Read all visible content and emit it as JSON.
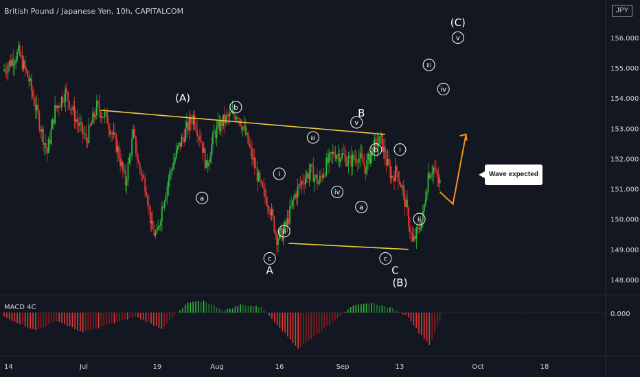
{
  "header": {
    "title": "British Pound / Japanese Yen, 10h, CAPITALCOM"
  },
  "currency": "JPY",
  "indicator": {
    "label": "MACD 4C",
    "zero_label": "0.000"
  },
  "callout": {
    "text": "Wave expected"
  },
  "colors": {
    "background": "#131722",
    "up": "#26a69a",
    "up_candle": "#2ebd3a",
    "down_candle": "#e53935",
    "trendline": "#f0c93c",
    "arrow": "#f7931a",
    "text": "#d1d4dc",
    "grid": "#1e222d"
  },
  "chart_data": {
    "type": "candlestick",
    "y_axis": {
      "ticks": [
        148.0,
        149.0,
        150.0,
        151.0,
        152.0,
        153.0,
        154.0,
        155.0,
        156.0
      ],
      "tick_labels": [
        "148.000",
        "149.000",
        "150.000",
        "151.000",
        "152.000",
        "153.000",
        "154.000",
        "155.000",
        "156.000"
      ],
      "range": [
        147.5,
        156.7
      ]
    },
    "x_axis": {
      "tick_labels": [
        "14",
        "Jul",
        "19",
        "Aug",
        "16",
        "Sep",
        "13",
        "Oct",
        "18"
      ]
    },
    "price_path": [
      {
        "t": 0,
        "p": 154.9
      },
      {
        "t": 6,
        "p": 155.5
      },
      {
        "t": 10,
        "p": 154.6
      },
      {
        "t": 14,
        "p": 153.2
      },
      {
        "t": 17,
        "p": 152.2
      },
      {
        "t": 20,
        "p": 153.6
      },
      {
        "t": 24,
        "p": 154.2
      },
      {
        "t": 28,
        "p": 153.3
      },
      {
        "t": 32,
        "p": 152.6
      },
      {
        "t": 36,
        "p": 153.7
      },
      {
        "t": 40,
        "p": 153.3
      },
      {
        "t": 44,
        "p": 152.3
      },
      {
        "t": 47,
        "p": 151.2
      },
      {
        "t": 50,
        "p": 152.8
      },
      {
        "t": 52,
        "p": 151.8
      },
      {
        "t": 55,
        "p": 151.0
      },
      {
        "t": 57,
        "p": 149.7
      },
      {
        "t": 59,
        "p": 149.4
      },
      {
        "t": 61,
        "p": 150.4
      },
      {
        "t": 64,
        "p": 151.5
      },
      {
        "t": 67,
        "p": 152.3
      },
      {
        "t": 70,
        "p": 152.9
      },
      {
        "t": 73,
        "p": 153.4
      },
      {
        "t": 76,
        "p": 152.6
      },
      {
        "t": 78,
        "p": 151.7
      },
      {
        "t": 81,
        "p": 152.8
      },
      {
        "t": 84,
        "p": 153.2
      },
      {
        "t": 87,
        "p": 153.4
      },
      {
        "t": 90,
        "p": 153.5
      },
      {
        "t": 93,
        "p": 152.8
      },
      {
        "t": 96,
        "p": 151.9
      },
      {
        "t": 99,
        "p": 151.0
      },
      {
        "t": 102,
        "p": 150.5
      },
      {
        "t": 105,
        "p": 149.4
      },
      {
        "t": 107,
        "p": 149.5
      },
      {
        "t": 109,
        "p": 149.9
      },
      {
        "t": 112,
        "p": 150.8
      },
      {
        "t": 115,
        "p": 151.3
      },
      {
        "t": 118,
        "p": 151.6
      },
      {
        "t": 121,
        "p": 151.2
      },
      {
        "t": 124,
        "p": 151.8
      },
      {
        "t": 127,
        "p": 152.2
      },
      {
        "t": 130,
        "p": 152.1
      },
      {
        "t": 133,
        "p": 151.9
      },
      {
        "t": 136,
        "p": 152.1
      },
      {
        "t": 139,
        "p": 151.7
      },
      {
        "t": 142,
        "p": 152.4
      },
      {
        "t": 145,
        "p": 152.6
      },
      {
        "t": 147,
        "p": 151.9
      },
      {
        "t": 149,
        "p": 151.4
      },
      {
        "t": 151,
        "p": 151.6
      },
      {
        "t": 153,
        "p": 151.0
      },
      {
        "t": 155,
        "p": 150.2
      },
      {
        "t": 157,
        "p": 149.2
      },
      {
        "t": 159,
        "p": 149.6
      },
      {
        "t": 161,
        "p": 150.1
      },
      {
        "t": 163,
        "p": 151.5
      },
      {
        "t": 165,
        "p": 151.7
      },
      {
        "t": 167,
        "p": 151.2
      }
    ],
    "trendlines": [
      {
        "name": "upper",
        "from": {
          "t": 37,
          "p": 153.6
        },
        "to": {
          "t": 146,
          "p": 152.8
        }
      },
      {
        "name": "lower",
        "from": {
          "t": 109,
          "p": 149.2
        },
        "to": {
          "t": 155,
          "p": 149.0
        }
      }
    ],
    "projection": [
      {
        "t": 167,
        "p": 150.9
      },
      {
        "t": 172,
        "p": 150.5
      },
      {
        "t": 177,
        "p": 152.8
      }
    ],
    "wave_labels": [
      {
        "text": "(A)",
        "t": 37,
        "p": 154.0,
        "style": "plain"
      },
      {
        "text": "b",
        "t": 48,
        "p": 153.7,
        "style": "circle"
      },
      {
        "text": "a",
        "t": 41,
        "p": 150.7,
        "style": "circle"
      },
      {
        "text": "i",
        "t": 57,
        "p": 151.5,
        "style": "circle"
      },
      {
        "text": "ii",
        "t": 58,
        "p": 149.6,
        "style": "circle"
      },
      {
        "text": "c",
        "t": 55,
        "p": 148.7,
        "style": "circle"
      },
      {
        "text": "A",
        "t": 55,
        "p": 148.3,
        "style": "plain"
      },
      {
        "text": "iii",
        "t": 64,
        "p": 152.7,
        "style": "circle"
      },
      {
        "text": "iv",
        "t": 69,
        "p": 150.9,
        "style": "circle"
      },
      {
        "text": "B",
        "t": 74,
        "p": 153.5,
        "style": "plain"
      },
      {
        "text": "v",
        "t": 73,
        "p": 153.2,
        "style": "circle"
      },
      {
        "text": "b",
        "t": 77,
        "p": 152.3,
        "style": "circle"
      },
      {
        "text": "a",
        "t": 74,
        "p": 150.4,
        "style": "circle"
      },
      {
        "text": "c",
        "t": 79,
        "p": 148.7,
        "style": "circle"
      },
      {
        "text": "C",
        "t": 81,
        "p": 148.3,
        "style": "plain"
      },
      {
        "text": "(B)",
        "t": 82,
        "p": 147.9,
        "style": "plain"
      },
      {
        "text": "i",
        "t": 82,
        "p": 152.3,
        "style": "circle"
      },
      {
        "text": "ii",
        "t": 86,
        "p": 150.0,
        "style": "circle"
      },
      {
        "text": "iii",
        "t": 88,
        "p": 155.1,
        "style": "circle"
      },
      {
        "text": "iv",
        "t": 91,
        "p": 154.3,
        "style": "circle"
      },
      {
        "text": "v",
        "t": 94,
        "p": 156.0,
        "style": "circle"
      },
      {
        "text": "(C)",
        "t": 94,
        "p": 156.5,
        "style": "plain"
      }
    ],
    "macd": {
      "zero": 0.0,
      "range": [
        -1.0,
        0.35
      ],
      "histogram_path": [
        {
          "t": 0,
          "v": -0.1
        },
        {
          "t": 6,
          "v": -0.45
        },
        {
          "t": 10,
          "v": -0.2
        },
        {
          "t": 15,
          "v": -0.5
        },
        {
          "t": 20,
          "v": -0.3
        },
        {
          "t": 25,
          "v": -0.1
        },
        {
          "t": 30,
          "v": -0.4
        },
        {
          "t": 35,
          "v": 0.25
        },
        {
          "t": 38,
          "v": 0.3
        },
        {
          "t": 42,
          "v": 0.05
        },
        {
          "t": 45,
          "v": 0.2
        },
        {
          "t": 49,
          "v": 0.15
        },
        {
          "t": 52,
          "v": -0.3
        },
        {
          "t": 56,
          "v": -0.9
        },
        {
          "t": 59,
          "v": -0.6
        },
        {
          "t": 62,
          "v": -0.3
        },
        {
          "t": 66,
          "v": 0.15
        },
        {
          "t": 70,
          "v": 0.25
        },
        {
          "t": 74,
          "v": 0.1
        },
        {
          "t": 77,
          "v": -0.1
        },
        {
          "t": 79,
          "v": -0.5
        },
        {
          "t": 81,
          "v": -0.8
        },
        {
          "t": 83,
          "v": -0.2
        }
      ]
    }
  }
}
